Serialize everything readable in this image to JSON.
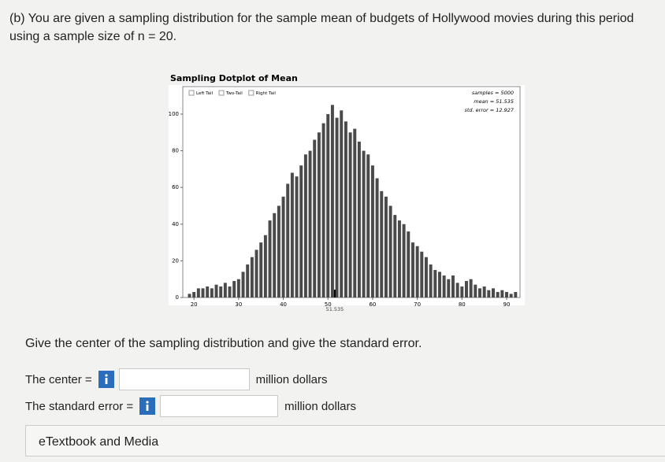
{
  "header": {
    "text": "(b) You are given a sampling distribution for the sample mean of budgets of Hollywood movies during this period using a sample size of n = 20."
  },
  "chart_data": {
    "type": "bar",
    "title": "Sampling Dotplot of Mean",
    "options": [
      "Left Tail",
      "Two-Tail",
      "Right Tail"
    ],
    "stats": [
      "samples = 5000",
      "mean = 51.535",
      "std. error = 12.927"
    ],
    "mean_marker": {
      "value": 51.535,
      "label": "51.535"
    },
    "color": "#4a4a4a",
    "x": [
      19,
      20,
      21,
      22,
      23,
      24,
      25,
      26,
      27,
      28,
      29,
      30,
      31,
      32,
      33,
      34,
      35,
      36,
      37,
      38,
      39,
      40,
      41,
      42,
      43,
      44,
      45,
      46,
      47,
      48,
      49,
      50,
      51,
      52,
      53,
      54,
      55,
      56,
      57,
      58,
      59,
      60,
      61,
      62,
      63,
      64,
      65,
      66,
      67,
      68,
      69,
      70,
      71,
      72,
      73,
      74,
      75,
      76,
      77,
      78,
      79,
      80,
      81,
      82,
      83,
      84,
      85,
      86,
      87,
      88,
      89,
      90,
      91,
      92
    ],
    "values": [
      2,
      3,
      5,
      5,
      6,
      5,
      7,
      6,
      8,
      6,
      9,
      10,
      14,
      18,
      22,
      26,
      30,
      34,
      42,
      46,
      50,
      55,
      62,
      68,
      66,
      72,
      78,
      80,
      86,
      90,
      95,
      100,
      105,
      98,
      102,
      96,
      90,
      92,
      85,
      80,
      78,
      72,
      65,
      58,
      55,
      50,
      45,
      42,
      40,
      36,
      30,
      28,
      25,
      22,
      18,
      15,
      14,
      12,
      10,
      12,
      8,
      6,
      9,
      10,
      7,
      5,
      6,
      4,
      5,
      3,
      4,
      3,
      2,
      3
    ],
    "xlim": [
      17.5,
      93
    ],
    "ylim": [
      0,
      115
    ],
    "xticks": [
      20,
      30,
      40,
      50,
      60,
      70,
      80,
      90
    ],
    "yticks": [
      0,
      20,
      40,
      60,
      80,
      100
    ]
  },
  "question": {
    "prompt": "Give the center of the sampling distribution and give the standard error.",
    "center_label": "The center =",
    "center_unit": "million dollars",
    "se_label": "The standard error =",
    "se_unit": "million dollars"
  },
  "footer": {
    "text": "eTextbook and Media"
  }
}
